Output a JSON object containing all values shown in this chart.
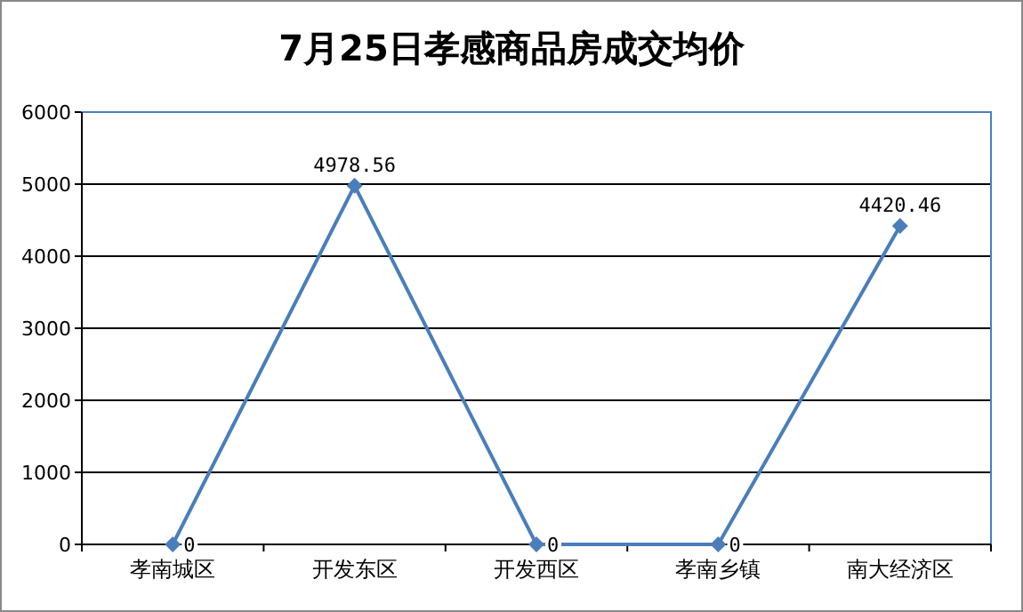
{
  "chart_data": {
    "type": "line",
    "title": "7月25日孝感商品房成交均价",
    "categories": [
      "孝南城区",
      "开发东区",
      "开发西区",
      "孝南乡镇",
      "南大经济区"
    ],
    "series": [
      {
        "color": "#4a7ebb",
        "values": [
          0,
          4978.56,
          0,
          0,
          4420.46
        ]
      }
    ],
    "ylim": [
      0,
      6000
    ],
    "yticks": [
      0,
      1000,
      2000,
      3000,
      4000,
      5000,
      6000
    ],
    "grid": "y",
    "marker": "diamond",
    "line_style": "solid",
    "data_labels": true
  }
}
